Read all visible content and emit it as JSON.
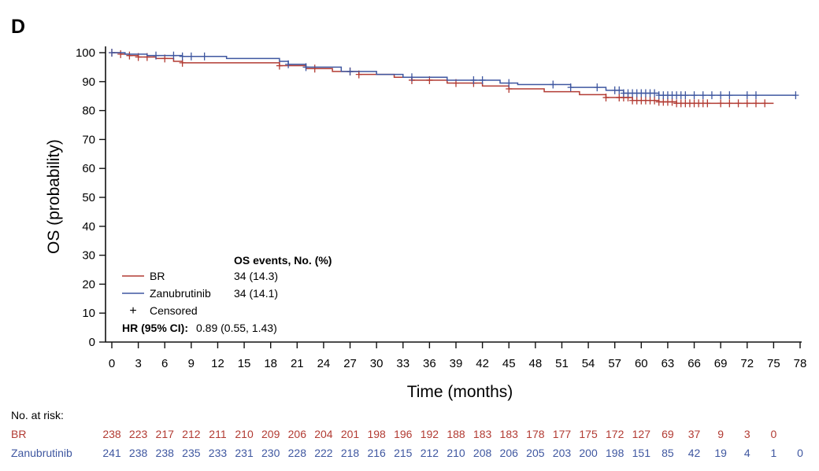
{
  "panel_label": "D",
  "colors": {
    "br": "#b23b33",
    "zanubrutinib": "#3f57a0",
    "axis": "#111111"
  },
  "legend": {
    "header": "OS events, No. (%)",
    "items": [
      {
        "name": "BR",
        "events": "34 (14.3)",
        "color": "#b23b33"
      },
      {
        "name": "Zanubrutinib",
        "events": "34 (14.1)",
        "color": "#3f57a0"
      }
    ],
    "censored_symbol": "+",
    "censored_label": "Censored",
    "hr_label": "HR (95% CI):",
    "hr_value": "0.89 (0.55, 1.43)"
  },
  "risk_table": {
    "title": "No. at risk:",
    "rows": [
      {
        "name": "BR",
        "color": "#b23b33",
        "values": [
          "238",
          "223",
          "217",
          "212",
          "211",
          "210",
          "209",
          "206",
          "204",
          "201",
          "198",
          "196",
          "192",
          "188",
          "183",
          "183",
          "178",
          "177",
          "175",
          "172",
          "127",
          "69",
          "37",
          "9",
          "3",
          "0"
        ]
      },
      {
        "name": "Zanubrutinib",
        "color": "#3f57a0",
        "values": [
          "241",
          "238",
          "238",
          "235",
          "233",
          "231",
          "230",
          "228",
          "222",
          "218",
          "216",
          "215",
          "212",
          "210",
          "208",
          "206",
          "205",
          "203",
          "200",
          "198",
          "151",
          "85",
          "42",
          "19",
          "4",
          "1",
          "0"
        ]
      }
    ]
  },
  "chart_data": {
    "type": "line",
    "title": "",
    "xlabel": "Time (months)",
    "ylabel": "OS (probability)",
    "xlim": [
      0,
      78
    ],
    "ylim": [
      0,
      100
    ],
    "xticks": [
      0,
      3,
      6,
      9,
      12,
      15,
      18,
      21,
      24,
      27,
      30,
      33,
      36,
      39,
      42,
      45,
      48,
      51,
      54,
      57,
      60,
      63,
      66,
      69,
      72,
      75,
      78
    ],
    "yticks": [
      0,
      10,
      20,
      30,
      40,
      50,
      60,
      70,
      80,
      90,
      100
    ],
    "series": [
      {
        "name": "BR",
        "color": "#b23b33",
        "steps": [
          [
            0,
            100
          ],
          [
            1,
            99.5
          ],
          [
            2,
            99
          ],
          [
            3,
            98.5
          ],
          [
            5,
            98
          ],
          [
            7,
            97
          ],
          [
            8,
            96.5
          ],
          [
            14,
            96.5
          ],
          [
            19,
            95.5
          ],
          [
            22,
            94.5
          ],
          [
            25,
            93.5
          ],
          [
            28,
            92.5
          ],
          [
            32,
            91.5
          ],
          [
            34,
            90.5
          ],
          [
            38,
            89.5
          ],
          [
            42,
            88.5
          ],
          [
            45,
            87.5
          ],
          [
            49,
            86.5
          ],
          [
            53,
            85.5
          ],
          [
            56,
            84.5
          ],
          [
            59,
            83.5
          ],
          [
            62,
            83
          ],
          [
            64,
            82.5
          ],
          [
            75,
            82.5
          ]
        ],
        "censored": [
          0,
          1,
          2,
          3,
          4,
          6,
          8,
          19,
          23,
          27,
          28,
          34,
          36,
          39,
          41,
          45,
          56,
          57.5,
          58,
          58.5,
          59,
          59.5,
          60,
          60.5,
          61,
          61.5,
          62,
          62.5,
          63,
          63.5,
          64,
          64.5,
          65,
          65.5,
          66,
          66.5,
          67,
          67.5,
          69,
          70,
          71,
          72,
          73,
          74
        ]
      },
      {
        "name": "Zanubrutinib",
        "color": "#3f57a0",
        "steps": [
          [
            0,
            100
          ],
          [
            1.5,
            99.5
          ],
          [
            4,
            99
          ],
          [
            8,
            98.7
          ],
          [
            13,
            98
          ],
          [
            19,
            97
          ],
          [
            20,
            96
          ],
          [
            22,
            95
          ],
          [
            26,
            93.5
          ],
          [
            30,
            92.5
          ],
          [
            33,
            91.5
          ],
          [
            38,
            90.5
          ],
          [
            44,
            89.5
          ],
          [
            46,
            89
          ],
          [
            52,
            88
          ],
          [
            56,
            87
          ],
          [
            58,
            86
          ],
          [
            62,
            85.3
          ],
          [
            77.5,
            85.3
          ]
        ],
        "censored": [
          0,
          5,
          7,
          8,
          9,
          10.5,
          20,
          22,
          27,
          34,
          41,
          42,
          45,
          50,
          52,
          55,
          57,
          57.5,
          58,
          58.5,
          59,
          59.5,
          60,
          60.5,
          61,
          61.5,
          62,
          62.5,
          63,
          63.5,
          64,
          64.5,
          65,
          66,
          67,
          68,
          69,
          70,
          72,
          73,
          77.5
        ]
      }
    ]
  }
}
